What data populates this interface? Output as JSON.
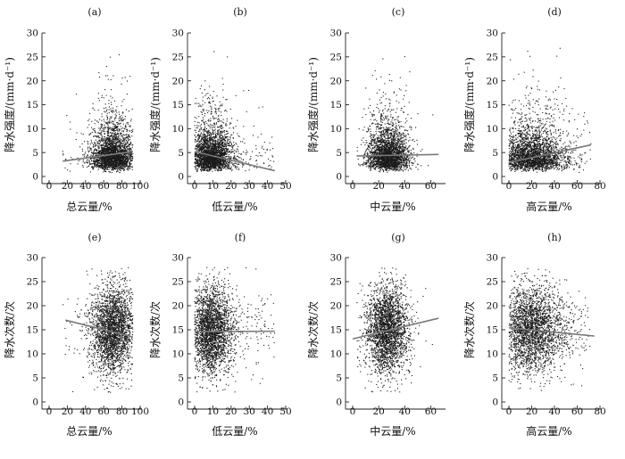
{
  "chart_data": [
    {
      "panel": "(a)",
      "type": "scatter",
      "xlabel": "总云量/%",
      "ylabel": "降水强度/(mm·d⁻¹)",
      "xlim": [
        0,
        100
      ],
      "ylim": [
        0,
        30
      ],
      "xticks": [
        0,
        20,
        40,
        60,
        80,
        100
      ],
      "yticks": [
        0,
        5,
        10,
        15,
        20,
        25,
        30
      ],
      "cloud": {
        "x_center": 70,
        "x_spread": 12,
        "x_min": 15,
        "x_max": 92,
        "y_center": 4.2,
        "y_spread": 3.0,
        "y_min": 0.4,
        "y_max": 27,
        "n": 2600,
        "skew": "right"
      },
      "trend": {
        "x": [
          15,
          92
        ],
        "y": [
          3.2,
          5.2
        ]
      }
    },
    {
      "panel": "(b)",
      "type": "scatter",
      "xlabel": "低云量/%",
      "ylabel": "降水强度/(mm·d⁻¹)",
      "xlim": [
        0,
        50
      ],
      "ylim": [
        0,
        30
      ],
      "xticks": [
        0,
        10,
        20,
        30,
        40,
        50
      ],
      "yticks": [
        0,
        5,
        10,
        15,
        20,
        25,
        30
      ],
      "cloud": {
        "x_center": 9,
        "x_spread": 6,
        "x_min": 0,
        "x_max": 44,
        "y_center": 4.2,
        "y_spread": 3.0,
        "y_min": 0.4,
        "y_max": 27,
        "n": 2600,
        "skew": "right"
      },
      "trend": {
        "x": [
          0,
          44
        ],
        "y": [
          5.2,
          1.2
        ]
      }
    },
    {
      "panel": "(c)",
      "type": "scatter",
      "xlabel": "中云量/%",
      "ylabel": "降水强度/(mm·d⁻¹)",
      "xlim": [
        0,
        70
      ],
      "ylim": [
        0,
        30
      ],
      "xticks": [
        0,
        20,
        40,
        60
      ],
      "yticks": [
        0,
        5,
        10,
        15,
        20,
        25,
        30
      ],
      "cloud": {
        "x_center": 27,
        "x_spread": 8,
        "x_min": 3,
        "x_max": 66,
        "y_center": 4.2,
        "y_spread": 3.0,
        "y_min": 0.4,
        "y_max": 27,
        "n": 2600,
        "skew": "right"
      },
      "trend": {
        "x": [
          3,
          66
        ],
        "y": [
          4.3,
          4.6
        ]
      }
    },
    {
      "panel": "(d)",
      "type": "scatter",
      "xlabel": "高云量/%",
      "ylabel": "降水强度/(mm·d⁻¹)",
      "xlim": [
        0,
        80
      ],
      "ylim": [
        0,
        30
      ],
      "xticks": [
        0,
        20,
        40,
        60,
        80
      ],
      "yticks": [
        0,
        5,
        10,
        15,
        20,
        25,
        30
      ],
      "cloud": {
        "x_center": 20,
        "x_spread": 14,
        "x_min": 0,
        "x_max": 72,
        "y_center": 4.2,
        "y_spread": 3.0,
        "y_min": 0.4,
        "y_max": 27,
        "n": 2600,
        "skew": "right"
      },
      "trend": {
        "x": [
          0,
          72
        ],
        "y": [
          2.9,
          6.6
        ]
      }
    },
    {
      "panel": "(e)",
      "type": "scatter",
      "xlabel": "总云量/%",
      "ylabel": "降水次数/次",
      "xlim": [
        0,
        100
      ],
      "ylim": [
        0,
        30
      ],
      "xticks": [
        0,
        20,
        40,
        60,
        80,
        100
      ],
      "yticks": [
        0,
        5,
        10,
        15,
        20,
        25,
        30
      ],
      "cloud": {
        "x_center": 70,
        "x_spread": 12,
        "x_min": 15,
        "x_max": 92,
        "y_center": 15,
        "y_spread": 4.5,
        "y_min": 2,
        "y_max": 28,
        "n": 2600,
        "skew": "none"
      },
      "trend": {
        "x": [
          18,
          92
        ],
        "y": [
          17,
          13.5
        ]
      }
    },
    {
      "panel": "(f)",
      "type": "scatter",
      "xlabel": "低云量/%",
      "ylabel": "降水次数/次",
      "xlim": [
        0,
        50
      ],
      "ylim": [
        0,
        30
      ],
      "xticks": [
        0,
        10,
        20,
        30,
        40,
        50
      ],
      "yticks": [
        0,
        5,
        10,
        15,
        20,
        25,
        30
      ],
      "cloud": {
        "x_center": 9,
        "x_spread": 6,
        "x_min": 0,
        "x_max": 44,
        "y_center": 15,
        "y_spread": 4.5,
        "y_min": 2,
        "y_max": 28,
        "n": 2600,
        "skew": "none"
      },
      "trend": {
        "x": [
          0,
          44
        ],
        "y": [
          14.6,
          14.7
        ]
      }
    },
    {
      "panel": "(g)",
      "type": "scatter",
      "xlabel": "中云量/%",
      "ylabel": "降水次数/次",
      "xlim": [
        0,
        70
      ],
      "ylim": [
        0,
        30
      ],
      "xticks": [
        0,
        20,
        40,
        60
      ],
      "yticks": [
        0,
        5,
        10,
        15,
        20,
        25,
        30
      ],
      "cloud": {
        "x_center": 27,
        "x_spread": 8,
        "x_min": 3,
        "x_max": 66,
        "y_center": 15,
        "y_spread": 4.5,
        "y_min": 2,
        "y_max": 28,
        "n": 2600,
        "skew": "none"
      },
      "trend": {
        "x": [
          0,
          66
        ],
        "y": [
          13.1,
          17.4
        ]
      }
    },
    {
      "panel": "(h)",
      "type": "scatter",
      "xlabel": "高云量/%",
      "ylabel": "降水次数/次",
      "xlim": [
        0,
        80
      ],
      "ylim": [
        0,
        30
      ],
      "xticks": [
        0,
        20,
        40,
        60,
        80
      ],
      "yticks": [
        0,
        5,
        10,
        15,
        20,
        25,
        30
      ],
      "cloud": {
        "x_center": 20,
        "x_spread": 14,
        "x_min": 0,
        "x_max": 72,
        "y_center": 15,
        "y_spread": 4.5,
        "y_min": 2,
        "y_max": 28,
        "n": 2600,
        "skew": "none"
      },
      "trend": {
        "x": [
          0,
          75
        ],
        "y": [
          15.4,
          13.7
        ]
      }
    }
  ]
}
